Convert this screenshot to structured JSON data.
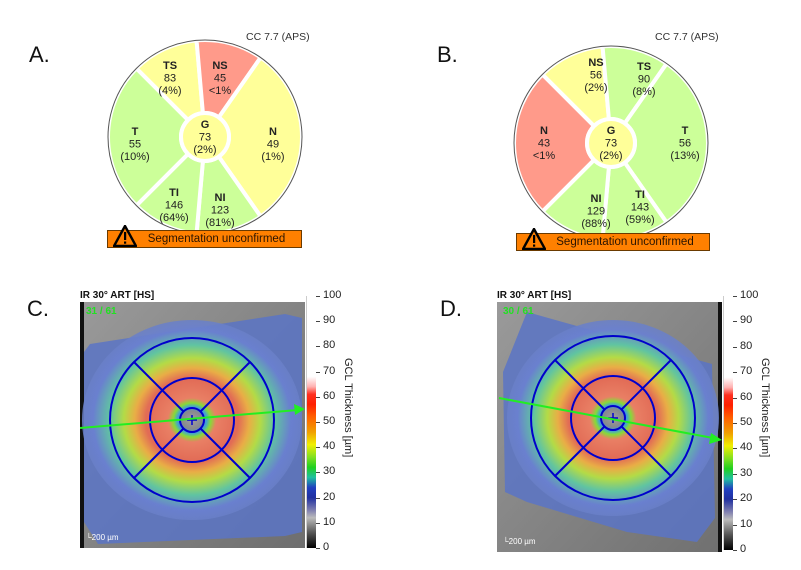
{
  "panels": {
    "A": {
      "letter": "A.",
      "cc_label": "CC 7.7 (APS)",
      "banner_text": "Segmentation unconfirmed",
      "sectors": {
        "TS": {
          "label": "TS",
          "value": "83",
          "pct": "(4%)",
          "color": "#ffff99"
        },
        "NS": {
          "label": "NS",
          "value": "45",
          "pct": "<1%",
          "color": "#ff9a8a"
        },
        "N": {
          "label": "N",
          "value": "49",
          "pct": "(1%)",
          "color": "#ffff99"
        },
        "NI": {
          "label": "NI",
          "value": "123",
          "pct": "(81%)",
          "color": "#ccff99"
        },
        "TI": {
          "label": "TI",
          "value": "146",
          "pct": "(64%)",
          "color": "#ccff99"
        },
        "T": {
          "label": "T",
          "value": "55",
          "pct": "(10%)",
          "color": "#ccff99"
        },
        "G": {
          "label": "G",
          "value": "73",
          "pct": "(2%)",
          "color": "#ffff99"
        }
      }
    },
    "B": {
      "letter": "B.",
      "cc_label": "CC 7.7 (APS)",
      "banner_text": "Segmentation unconfirmed",
      "sectors": {
        "NS": {
          "label": "NS",
          "value": "56",
          "pct": "(2%)",
          "color": "#ffff99"
        },
        "TS": {
          "label": "TS",
          "value": "90",
          "pct": "(8%)",
          "color": "#ccff99"
        },
        "T": {
          "label": "T",
          "value": "56",
          "pct": "(13%)",
          "color": "#ccff99"
        },
        "TI": {
          "label": "TI",
          "value": "143",
          "pct": "(59%)",
          "color": "#ccff99"
        },
        "NI": {
          "label": "NI",
          "value": "129",
          "pct": "(88%)",
          "color": "#ccff99"
        },
        "N": {
          "label": "N",
          "value": "43",
          "pct": "<1%",
          "color": "#ff9a8a"
        },
        "G": {
          "label": "G",
          "value": "73",
          "pct": "(2%)",
          "color": "#ffff99"
        }
      }
    },
    "C": {
      "letter": "C.",
      "title": "IR 30° ART [HS]",
      "frame_counter": "31 / 61",
      "scale_label": "200 µm",
      "colorbar_label": "GCL Thickness [µm]",
      "colorbar_ticks": [
        "100",
        "90",
        "80",
        "70",
        "60",
        "50",
        "40",
        "30",
        "20",
        "10",
        "0"
      ],
      "arrow_value": 50
    },
    "D": {
      "letter": "D.",
      "title": "IR 30° ART [HS]",
      "frame_counter": "30 / 61",
      "scale_label": "200 µm",
      "colorbar_label": "GCL Thickness [µm]",
      "colorbar_ticks": [
        "100",
        "90",
        "80",
        "70",
        "60",
        "50",
        "40",
        "30",
        "20",
        "10",
        "0"
      ],
      "arrow_value": 36
    }
  },
  "colors": {
    "banner": "#ff8000",
    "grid_blue": "#0000cc",
    "scan_line_green": "#22ee22",
    "sector_green": "#ccff99",
    "sector_yellow": "#ffff99",
    "sector_red": "#ff9a8a"
  }
}
